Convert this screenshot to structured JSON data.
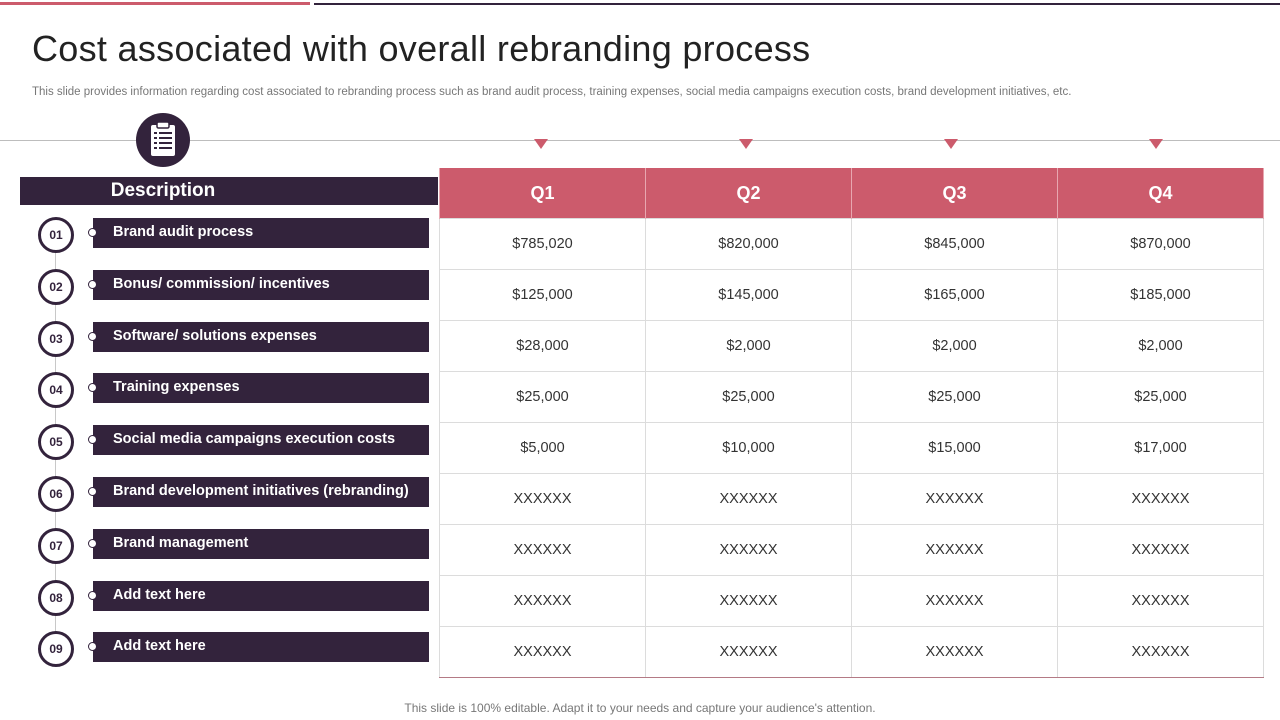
{
  "slide": {
    "title": "Cost associated with overall rebranding process",
    "subtitle": "This slide provides information regarding cost associated to rebranding process such as brand audit process,  training expenses, social media campaigns execution costs, brand development initiatives, etc.",
    "footer": "This slide is 100% editable. Adapt it to your needs and capture your audience's attention."
  },
  "description_header": "Description",
  "icon": "clipboard-icon",
  "colors": {
    "accent": "#cc5b6c",
    "dark": "#33233c"
  },
  "quarters": [
    "Q1",
    "Q2",
    "Q3",
    "Q4"
  ],
  "items": [
    {
      "num": "01",
      "label": "Brand audit process",
      "values": [
        "$785,020",
        "$820,000",
        "$845,000",
        "$870,000"
      ]
    },
    {
      "num": "02",
      "label": "Bonus/ commission/  incentives",
      "values": [
        "$125,000",
        "$145,000",
        "$165,000",
        "$185,000"
      ]
    },
    {
      "num": "03",
      "label": "Software/ solutions  expenses",
      "values": [
        "$28,000",
        "$2,000",
        "$2,000",
        "$2,000"
      ]
    },
    {
      "num": "04",
      "label": "Training expenses",
      "values": [
        "$25,000",
        "$25,000",
        "$25,000",
        "$25,000"
      ]
    },
    {
      "num": "05",
      "label": "Social media campaigns  execution costs",
      "values": [
        "$5,000",
        "$10,000",
        "$15,000",
        "$17,000"
      ]
    },
    {
      "num": "06",
      "label": "Brand development initiatives (rebranding)",
      "values": [
        "XXXXXX",
        "XXXXXX",
        "XXXXXX",
        "XXXXXX"
      ]
    },
    {
      "num": "07",
      "label": "Brand management",
      "values": [
        "XXXXXX",
        "XXXXXX",
        "XXXXXX",
        "XXXXXX"
      ]
    },
    {
      "num": "08",
      "label": "Add  text here",
      "values": [
        "XXXXXX",
        "XXXXXX",
        "XXXXXX",
        "XXXXXX"
      ]
    },
    {
      "num": "09",
      "label": "Add  text here",
      "values": [
        "XXXXXX",
        "XXXXXX",
        "XXXXXX",
        "XXXXXX"
      ]
    }
  ]
}
